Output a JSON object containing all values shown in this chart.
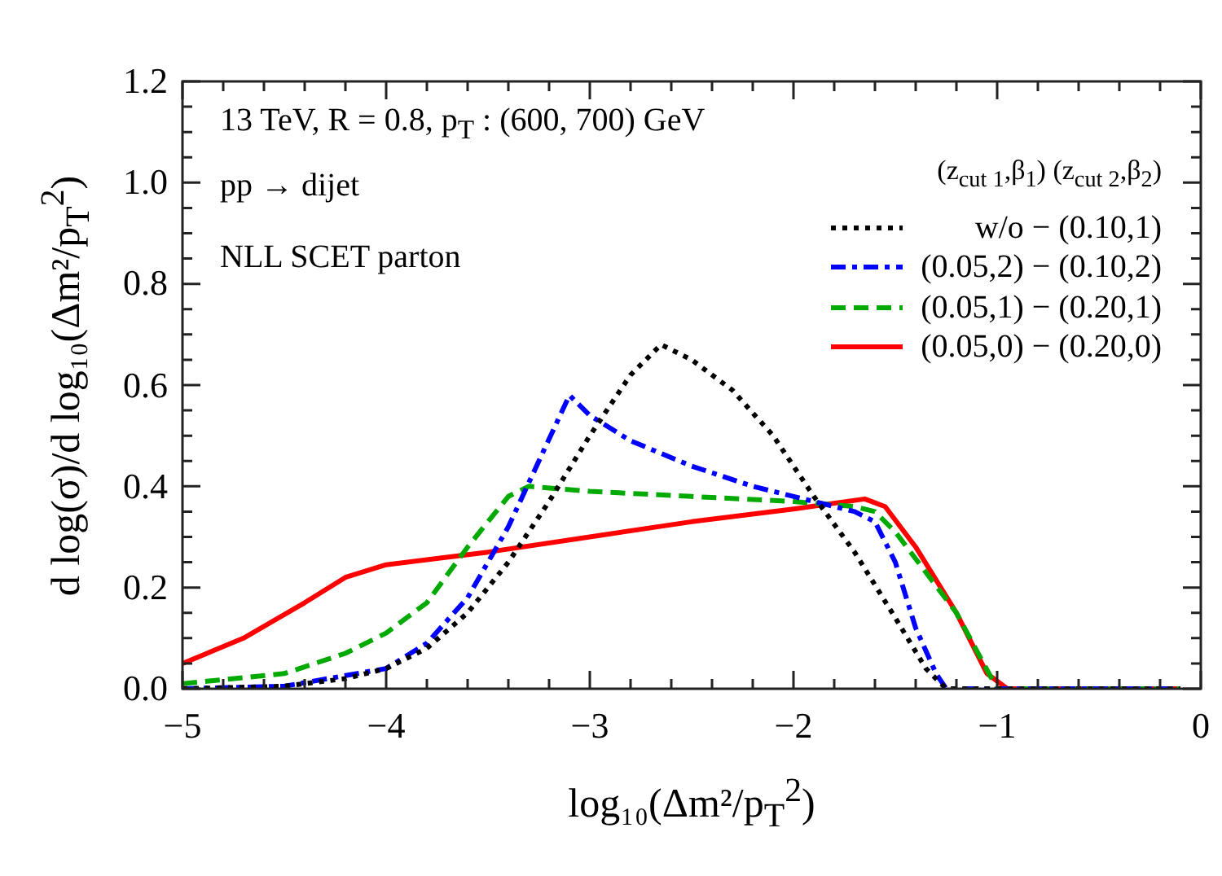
{
  "chart_data": {
    "type": "line",
    "xlabel": "log₁₀(Δm²/p$_{T}$$^{2}$)",
    "ylabel": "d log(σ)/d log₁₀(Δm²/p$_{T}$$^{2}$)",
    "legend_title": "(z$_{cut 1}$,β$_{1}$)  (z$_{cut 2}$,β$_{2}$)",
    "legend": "top right",
    "grid": false,
    "marker": "none",
    "annotations": [
      "13  TeV, R = 0.8, p$_{T}$ : (600, 700) GeV",
      "pp → dijet",
      "NLL SCET parton"
    ],
    "xlim": [
      -5,
      0
    ],
    "ylim": [
      0,
      1.2
    ],
    "xticks": [
      {
        "value": -5,
        "label": "−5"
      },
      {
        "value": -4.8,
        "label": null
      },
      {
        "value": -4.6,
        "label": null
      },
      {
        "value": -4.4,
        "label": null
      },
      {
        "value": -4.2,
        "label": null
      },
      {
        "value": -4,
        "label": "−4"
      },
      {
        "value": -3.8,
        "label": null
      },
      {
        "value": -3.6,
        "label": null
      },
      {
        "value": -3.4,
        "label": null
      },
      {
        "value": -3.2,
        "label": null
      },
      {
        "value": -3,
        "label": "−3"
      },
      {
        "value": -2.8,
        "label": null
      },
      {
        "value": -2.6,
        "label": null
      },
      {
        "value": -2.4,
        "label": null
      },
      {
        "value": -2.2,
        "label": null
      },
      {
        "value": -2,
        "label": "−2"
      },
      {
        "value": -1.8,
        "label": null
      },
      {
        "value": -1.6,
        "label": null
      },
      {
        "value": -1.4,
        "label": null
      },
      {
        "value": -1.2,
        "label": null
      },
      {
        "value": -1,
        "label": "−1"
      },
      {
        "value": -0.8,
        "label": null
      },
      {
        "value": -0.6,
        "label": null
      },
      {
        "value": -0.4,
        "label": null
      },
      {
        "value": -0.2,
        "label": null
      },
      0
    ],
    "yticks": [
      {
        "value": 0,
        "label": "0.0"
      },
      {
        "value": 0.05,
        "label": null
      },
      {
        "value": 0.1,
        "label": null
      },
      {
        "value": 0.15,
        "label": null
      },
      0.2,
      {
        "value": 0.25,
        "label": null
      },
      {
        "value": 0.3,
        "label": null
      },
      {
        "value": 0.35,
        "label": null
      },
      0.4,
      {
        "value": 0.45,
        "label": null
      },
      {
        "value": 0.5,
        "label": null
      },
      {
        "value": 0.55,
        "label": null
      },
      0.6,
      {
        "value": 0.65,
        "label": null
      },
      {
        "value": 0.7,
        "label": null
      },
      {
        "value": 0.75,
        "label": null
      },
      0.8,
      {
        "value": 0.85,
        "label": null
      },
      {
        "value": 0.9,
        "label": null
      },
      {
        "value": 0.95,
        "label": null
      },
      {
        "value": 1,
        "label": "1.0"
      },
      {
        "value": 1.05,
        "label": null
      },
      {
        "value": 1.1,
        "label": null
      },
      {
        "value": 1.15,
        "label": null
      },
      1.2
    ],
    "series": [
      {
        "name": "w/o  − (0.10,1)",
        "color": "#000000",
        "line_style": "dotted",
        "x": [
          -5,
          -4.5,
          -4.2,
          -4,
          -3.8,
          -3.6,
          -3.4,
          -3.2,
          -3,
          -2.8,
          -2.65,
          -2.5,
          -2.3,
          -2.1,
          -1.9,
          -1.7,
          -1.5,
          -1.35,
          -1.25,
          -1,
          -0.5,
          -0.1
        ],
        "values": [
          0,
          0.005,
          0.02,
          0.04,
          0.08,
          0.15,
          0.25,
          0.37,
          0.5,
          0.62,
          0.68,
          0.65,
          0.59,
          0.5,
          0.38,
          0.27,
          0.14,
          0.04,
          0,
          0,
          0,
          0
        ]
      },
      {
        "name": "(0.05,2) − (0.10,2)",
        "color": "#0000ff",
        "line_style": "dashdot",
        "x": [
          -5,
          -4.5,
          -4,
          -3.8,
          -3.6,
          -3.4,
          -3.25,
          -3.1,
          -3,
          -2.8,
          -2.5,
          -2.2,
          -1.9,
          -1.7,
          -1.6,
          -1.5,
          -1.4,
          -1.3,
          -1.25,
          -1,
          -0.5,
          -0.1
        ],
        "values": [
          0,
          0.005,
          0.04,
          0.09,
          0.18,
          0.32,
          0.45,
          0.58,
          0.54,
          0.49,
          0.44,
          0.4,
          0.37,
          0.35,
          0.33,
          0.25,
          0.12,
          0.03,
          0,
          0,
          0,
          0
        ]
      },
      {
        "name": "(0.05,1) − (0.20,1)",
        "color": "#00aa00",
        "line_style": "dashed",
        "x": [
          -5,
          -4.5,
          -4.2,
          -4,
          -3.8,
          -3.6,
          -3.4,
          -3.3,
          -3,
          -2.5,
          -2,
          -1.7,
          -1.6,
          -1.5,
          -1.2,
          -1,
          -0.5,
          -0.1
        ],
        "values": [
          0.01,
          0.03,
          0.07,
          0.11,
          0.17,
          0.28,
          0.38,
          0.4,
          0.39,
          0.38,
          0.37,
          0.36,
          0.35,
          0.31,
          0.15,
          0,
          0,
          0
        ]
      },
      {
        "name": "(0.05,0) − (0.20,0)",
        "color": "#ff0000",
        "line_style": "solid",
        "x": [
          -5,
          -4.7,
          -4.4,
          -4.2,
          -4,
          -3.8,
          -3.5,
          -3,
          -2.5,
          -2,
          -1.65,
          -1.55,
          -1.4,
          -1.2,
          -1.05,
          -0.95,
          -0.5,
          -0.1
        ],
        "values": [
          0.05,
          0.1,
          0.17,
          0.22,
          0.245,
          0.255,
          0.27,
          0.3,
          0.33,
          0.355,
          0.375,
          0.36,
          0.28,
          0.15,
          0.03,
          0,
          0,
          0
        ]
      }
    ]
  }
}
